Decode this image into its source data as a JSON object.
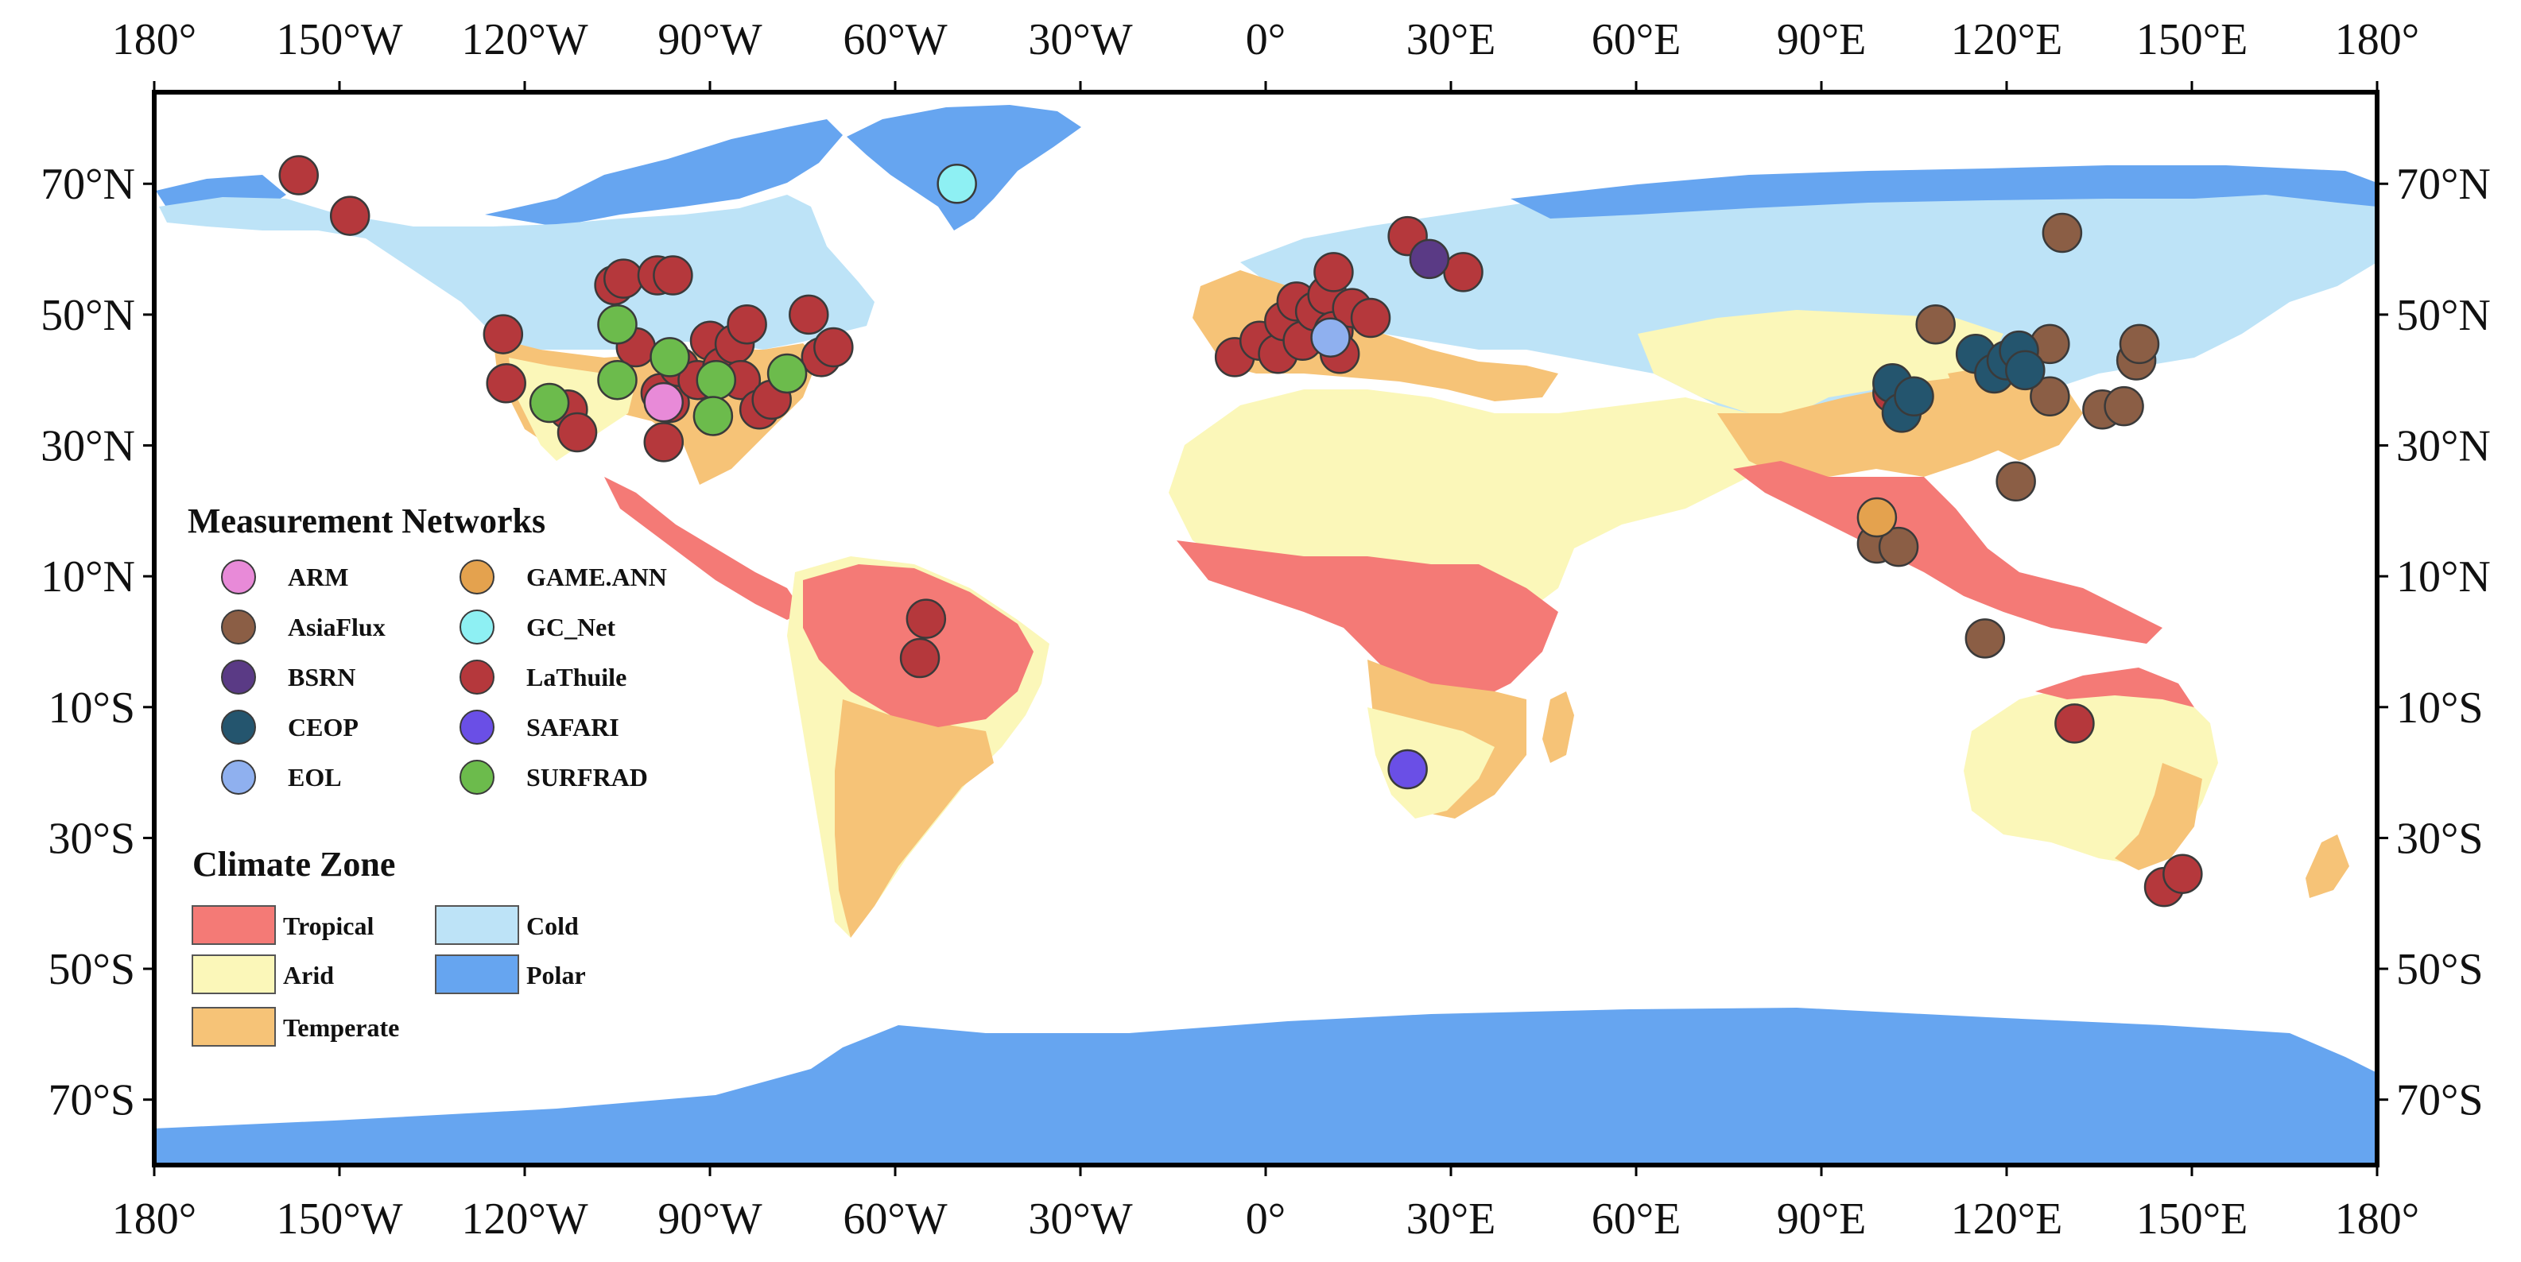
{
  "chart_data": {
    "type": "scatter",
    "projection": "equirectangular",
    "x_ticks": [
      "180°",
      "150°W",
      "120°W",
      "90°W",
      "60°W",
      "30°W",
      "0°",
      "30°E",
      "60°E",
      "90°E",
      "120°E",
      "150°E",
      "180°"
    ],
    "y_ticks": [
      "70°N",
      "50°N",
      "30°N",
      "10°N",
      "10°S",
      "30°S",
      "50°S",
      "70°S"
    ],
    "xlim": [
      -180,
      180
    ],
    "ylim": [
      -90,
      90
    ],
    "legend_networks_title": "Measurement Networks",
    "legend_climate_title": "Climate Zone",
    "networks": [
      {
        "name": "ARM",
        "color": "#e88ad8"
      },
      {
        "name": "AsiaFlux",
        "color": "#8b5e45"
      },
      {
        "name": "BSRN",
        "color": "#5a3a85"
      },
      {
        "name": "CEOP",
        "color": "#24556e"
      },
      {
        "name": "EOL",
        "color": "#8fb0ef"
      },
      {
        "name": "GAME.ANN",
        "color": "#e4a24e"
      },
      {
        "name": "GC_Net",
        "color": "#8ef0f3"
      },
      {
        "name": "LaThuile",
        "color": "#b5383c"
      },
      {
        "name": "SAFARI",
        "color": "#6a4fe6"
      },
      {
        "name": "SURFRAD",
        "color": "#6cbb4c"
      }
    ],
    "climate_zones": [
      {
        "name": "Tropical",
        "color": "#f47a76"
      },
      {
        "name": "Arid",
        "color": "#fbf7b9"
      },
      {
        "name": "Temperate",
        "color": "#f6c377"
      },
      {
        "name": "Cold",
        "color": "#bde3f7"
      },
      {
        "name": "Polar",
        "color": "#66a5f0"
      }
    ],
    "sites": [
      {
        "network": "LaThuile",
        "lon": -156.6,
        "lat": 71.3
      },
      {
        "network": "LaThuile",
        "lon": -148.3,
        "lat": 65.1
      },
      {
        "network": "LaThuile",
        "lon": -123.5,
        "lat": 47.0
      },
      {
        "network": "LaThuile",
        "lon": -123.0,
        "lat": 39.5
      },
      {
        "network": "LaThuile",
        "lon": -113.0,
        "lat": 35.5
      },
      {
        "network": "LaThuile",
        "lon": -111.5,
        "lat": 32.0
      },
      {
        "network": "LaThuile",
        "lon": -105.5,
        "lat": 54.5
      },
      {
        "network": "LaThuile",
        "lon": -104.0,
        "lat": 55.5
      },
      {
        "network": "LaThuile",
        "lon": -98.5,
        "lat": 56.0
      },
      {
        "network": "LaThuile",
        "lon": -96.0,
        "lat": 56.0
      },
      {
        "network": "LaThuile",
        "lon": -102.0,
        "lat": 45.0
      },
      {
        "network": "LaThuile",
        "lon": -98.0,
        "lat": 38.0
      },
      {
        "network": "LaThuile",
        "lon": -96.5,
        "lat": 36.5
      },
      {
        "network": "LaThuile",
        "lon": -97.5,
        "lat": 30.5
      },
      {
        "network": "LaThuile",
        "lon": -95.0,
        "lat": 42.0
      },
      {
        "network": "LaThuile",
        "lon": -92.0,
        "lat": 40.0
      },
      {
        "network": "LaThuile",
        "lon": -90.0,
        "lat": 46.0
      },
      {
        "network": "LaThuile",
        "lon": -88.0,
        "lat": 42.0
      },
      {
        "network": "LaThuile",
        "lon": -86.0,
        "lat": 45.5
      },
      {
        "network": "LaThuile",
        "lon": -85.0,
        "lat": 40.0
      },
      {
        "network": "LaThuile",
        "lon": -84.0,
        "lat": 48.5
      },
      {
        "network": "LaThuile",
        "lon": -82.0,
        "lat": 35.5
      },
      {
        "network": "LaThuile",
        "lon": -80.0,
        "lat": 37.0
      },
      {
        "network": "LaThuile",
        "lon": -74.0,
        "lat": 50.0
      },
      {
        "network": "LaThuile",
        "lon": -72.0,
        "lat": 43.5
      },
      {
        "network": "LaThuile",
        "lon": -70.0,
        "lat": 45.0
      },
      {
        "network": "LaThuile",
        "lon": -55.0,
        "lat": 3.5
      },
      {
        "network": "LaThuile",
        "lon": -56.0,
        "lat": -2.5
      },
      {
        "network": "LaThuile",
        "lon": -5.0,
        "lat": 43.5
      },
      {
        "network": "LaThuile",
        "lon": -1.0,
        "lat": 46.0
      },
      {
        "network": "LaThuile",
        "lon": 2.0,
        "lat": 44.0
      },
      {
        "network": "LaThuile",
        "lon": 3.0,
        "lat": 49.0
      },
      {
        "network": "LaThuile",
        "lon": 5.0,
        "lat": 52.0
      },
      {
        "network": "LaThuile",
        "lon": 6.0,
        "lat": 46.0
      },
      {
        "network": "LaThuile",
        "lon": 8.0,
        "lat": 50.5
      },
      {
        "network": "LaThuile",
        "lon": 10.0,
        "lat": 53.0
      },
      {
        "network": "LaThuile",
        "lon": 11.0,
        "lat": 47.5
      },
      {
        "network": "LaThuile",
        "lon": 12.0,
        "lat": 44.0
      },
      {
        "network": "LaThuile",
        "lon": 11.0,
        "lat": 56.5
      },
      {
        "network": "LaThuile",
        "lon": 14.0,
        "lat": 51.0
      },
      {
        "network": "LaThuile",
        "lon": 17.0,
        "lat": 49.5
      },
      {
        "network": "LaThuile",
        "lon": 23.0,
        "lat": 62.0
      },
      {
        "network": "LaThuile",
        "lon": 32.0,
        "lat": 56.5
      },
      {
        "network": "LaThuile",
        "lon": 101.5,
        "lat": 38.0
      },
      {
        "network": "LaThuile",
        "lon": 131.0,
        "lat": -12.5
      },
      {
        "network": "LaThuile",
        "lon": 145.5,
        "lat": -37.5
      },
      {
        "network": "LaThuile",
        "lon": 148.5,
        "lat": -35.5
      },
      {
        "network": "AsiaFlux",
        "lon": 129.0,
        "lat": 62.5
      },
      {
        "network": "AsiaFlux",
        "lon": 108.5,
        "lat": 48.5
      },
      {
        "network": "AsiaFlux",
        "lon": 127.0,
        "lat": 45.5
      },
      {
        "network": "AsiaFlux",
        "lon": 127.0,
        "lat": 37.5
      },
      {
        "network": "AsiaFlux",
        "lon": 135.5,
        "lat": 35.5
      },
      {
        "network": "AsiaFlux",
        "lon": 139.0,
        "lat": 36.0
      },
      {
        "network": "AsiaFlux",
        "lon": 141.0,
        "lat": 43.0
      },
      {
        "network": "AsiaFlux",
        "lon": 141.5,
        "lat": 45.5
      },
      {
        "network": "AsiaFlux",
        "lon": 121.5,
        "lat": 24.5
      },
      {
        "network": "AsiaFlux",
        "lon": 99.0,
        "lat": 15.0
      },
      {
        "network": "AsiaFlux",
        "lon": 102.5,
        "lat": 14.5
      },
      {
        "network": "AsiaFlux",
        "lon": 116.5,
        "lat": 0.5
      },
      {
        "network": "CEOP",
        "lon": 101.5,
        "lat": 39.5
      },
      {
        "network": "CEOP",
        "lon": 103.0,
        "lat": 35.0
      },
      {
        "network": "CEOP",
        "lon": 105.0,
        "lat": 37.5
      },
      {
        "network": "CEOP",
        "lon": 115.0,
        "lat": 44.0
      },
      {
        "network": "CEOP",
        "lon": 118.0,
        "lat": 41.0
      },
      {
        "network": "CEOP",
        "lon": 120.0,
        "lat": 43.0
      },
      {
        "network": "CEOP",
        "lon": 122.0,
        "lat": 44.5
      },
      {
        "network": "CEOP",
        "lon": 123.0,
        "lat": 41.5
      },
      {
        "network": "SURFRAD",
        "lon": -105.0,
        "lat": 48.5
      },
      {
        "network": "SURFRAD",
        "lon": -105.0,
        "lat": 40.0
      },
      {
        "network": "SURFRAD",
        "lon": -116.0,
        "lat": 36.5
      },
      {
        "network": "SURFRAD",
        "lon": -96.5,
        "lat": 43.5
      },
      {
        "network": "SURFRAD",
        "lon": -89.0,
        "lat": 40.0
      },
      {
        "network": "SURFRAD",
        "lon": -89.5,
        "lat": 34.5
      },
      {
        "network": "SURFRAD",
        "lon": -77.5,
        "lat": 41.0
      },
      {
        "network": "ARM",
        "lon": -97.5,
        "lat": 36.6
      },
      {
        "network": "BSRN",
        "lon": 26.5,
        "lat": 58.5
      },
      {
        "network": "EOL",
        "lon": 10.5,
        "lat": 46.5
      },
      {
        "network": "GAME.ANN",
        "lon": 99.0,
        "lat": 19.0
      },
      {
        "network": "GC_Net",
        "lon": -50.0,
        "lat": 70.0
      },
      {
        "network": "SAFARI",
        "lon": 23.0,
        "lat": -19.5
      }
    ]
  }
}
